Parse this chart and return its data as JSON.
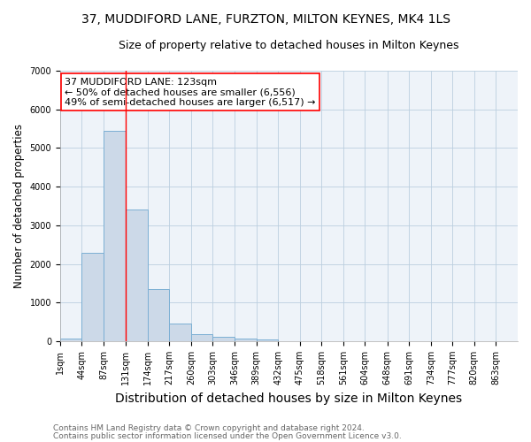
{
  "title": "37, MUDDIFORD LANE, FURZTON, MILTON KEYNES, MK4 1LS",
  "subtitle": "Size of property relative to detached houses in Milton Keynes",
  "xlabel": "Distribution of detached houses by size in Milton Keynes",
  "ylabel": "Number of detached properties",
  "bar_color": "#ccd9e8",
  "bar_edge_color": "#7bafd4",
  "background_color": "#ffffff",
  "plot_bg_color": "#eef3f9",
  "grid_color": "#bbcfdf",
  "bins_left_edges": [
    1,
    44,
    87,
    131,
    174,
    217,
    260,
    303,
    346,
    389,
    432,
    475,
    518,
    561,
    604,
    648,
    691,
    734,
    777,
    820,
    863
  ],
  "bin_width": 43,
  "bar_heights": [
    75,
    2280,
    5450,
    3400,
    1340,
    450,
    175,
    105,
    65,
    40,
    10,
    5,
    2,
    1,
    0,
    0,
    0,
    0,
    0,
    0
  ],
  "ylim": [
    0,
    7000
  ],
  "yticks": [
    0,
    1000,
    2000,
    3000,
    4000,
    5000,
    6000,
    7000
  ],
  "red_line_x": 131,
  "annotation_title": "37 MUDDIFORD LANE: 123sqm",
  "annotation_line1": "← 50% of detached houses are smaller (6,556)",
  "annotation_line2": "49% of semi-detached houses are larger (6,517) →",
  "footnote1": "Contains HM Land Registry data © Crown copyright and database right 2024.",
  "footnote2": "Contains public sector information licensed under the Open Government Licence v3.0.",
  "title_fontsize": 10,
  "subtitle_fontsize": 9,
  "xlabel_fontsize": 10,
  "ylabel_fontsize": 8.5,
  "tick_fontsize": 7,
  "annotation_fontsize": 8,
  "footnote_fontsize": 6.5
}
